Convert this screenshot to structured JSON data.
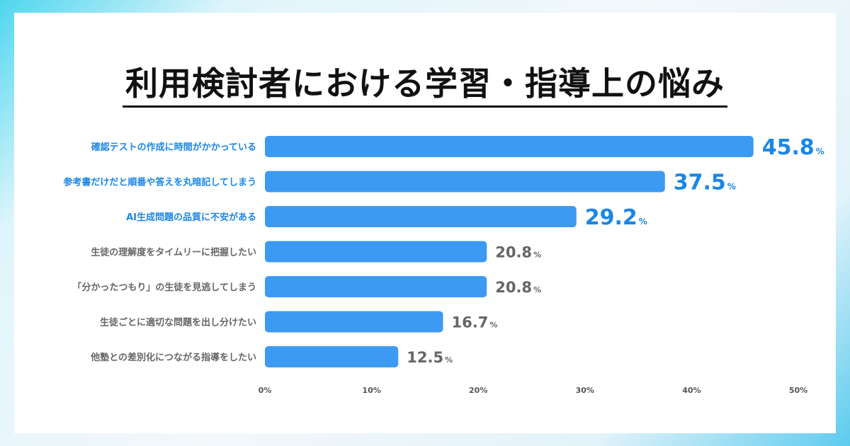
{
  "title": "利用検討者における学習・指導上の悩み",
  "chart_data": {
    "type": "bar",
    "orientation": "horizontal",
    "categories": [
      "確認テストの作成に時間がかかっている",
      "参考書だけだと順番や答えを丸暗記してしまう",
      "AI生成問題の品質に不安がある",
      "生徒の理解度をタイムリーに把握したい",
      "「分かったつもり」の生徒を見逃してしまう",
      "生徒ごとに適切な問題を出し分けたい",
      "他塾との差別化につながる指導をしたい"
    ],
    "values": [
      45.8,
      37.5,
      29.2,
      20.8,
      20.8,
      16.7,
      12.5
    ],
    "value_unit": "%",
    "highlight": [
      true,
      true,
      true,
      false,
      false,
      false,
      false
    ],
    "xlim": [
      0,
      50
    ],
    "xticks": [
      0,
      10,
      20,
      30,
      40,
      50
    ],
    "xtick_labels": [
      "0%",
      "10%",
      "20%",
      "30%",
      "40%",
      "50%"
    ],
    "bar_color": "#3d9af3",
    "highlight_color": "#1b86e6",
    "muted_color": "#666666"
  }
}
